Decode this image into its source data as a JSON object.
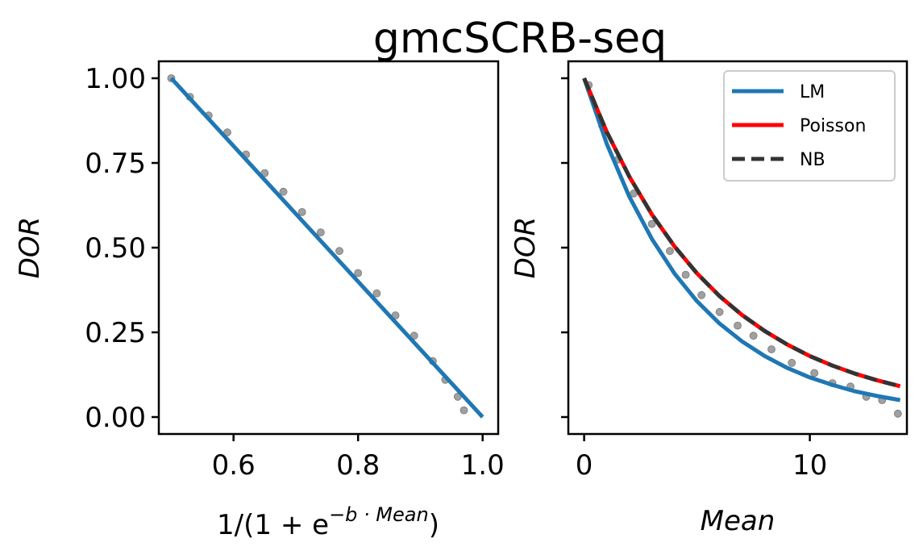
{
  "figure": {
    "title": "gmcSCRB-seq"
  },
  "colors": {
    "lm": "#1f77b4",
    "poisson": "#ff0000",
    "nb": "#333333",
    "points": "#a0a0a0",
    "axes": "#000000",
    "background": "#ffffff"
  },
  "chart_data": [
    {
      "type": "scatter",
      "panel": "left",
      "xlabel": "1/(1 + e",
      "xlabel_sup": "−b · Mean",
      "xlabel_tail": ")",
      "ylabel": "DOR",
      "xlim": [
        0.48,
        1.025
      ],
      "ylim": [
        -0.05,
        1.05
      ],
      "x_ticks": [
        0.6,
        0.8,
        1.0
      ],
      "x_tick_labels": [
        "0.6",
        "0.8",
        "1.0"
      ],
      "y_ticks": [
        0.0,
        0.25,
        0.5,
        0.75,
        1.0
      ],
      "y_tick_labels": [
        "0.00",
        "0.25",
        "0.50",
        "0.75",
        "1.00"
      ],
      "grid": false,
      "series": [
        {
          "kind": "points",
          "color": "#a0a0a0",
          "x": [
            0.5,
            0.53,
            0.56,
            0.59,
            0.62,
            0.65,
            0.68,
            0.71,
            0.74,
            0.77,
            0.8,
            0.83,
            0.86,
            0.89,
            0.92,
            0.94,
            0.96,
            0.97
          ],
          "y": [
            1.0,
            0.945,
            0.89,
            0.84,
            0.775,
            0.72,
            0.665,
            0.605,
            0.545,
            0.49,
            0.425,
            0.365,
            0.3,
            0.24,
            0.165,
            0.11,
            0.06,
            0.02
          ]
        },
        {
          "kind": "line",
          "color": "#1f77b4",
          "x": [
            0.5,
            1.0
          ],
          "y": [
            1.0,
            0.0
          ]
        }
      ]
    },
    {
      "type": "line",
      "panel": "right",
      "xlabel": "Mean",
      "ylabel": "DOR",
      "xlim": [
        -0.7,
        14.3
      ],
      "ylim": [
        -0.05,
        1.05
      ],
      "x_ticks": [
        0,
        10
      ],
      "x_tick_labels": [
        "0",
        "10"
      ],
      "y_ticks": [
        0.0,
        0.25,
        0.5,
        0.75,
        1.0
      ],
      "y_tick_labels": [
        "",
        "",
        "",
        "",
        ""
      ],
      "grid": false,
      "legend_position": "top-right",
      "series": [
        {
          "name": "LM",
          "color": "#1f77b4",
          "dash": "solid",
          "x": [
            0,
            1,
            2,
            3,
            4,
            5,
            6,
            7,
            8,
            9,
            10,
            11,
            12,
            13,
            14
          ],
          "y": [
            1.0,
            0.807,
            0.651,
            0.526,
            0.424,
            0.342,
            0.276,
            0.223,
            0.18,
            0.145,
            0.117,
            0.095,
            0.076,
            0.062,
            0.05
          ]
        },
        {
          "name": "Poisson",
          "color": "#ff0000",
          "dash": "solid",
          "x": [
            0,
            1,
            2,
            3,
            4,
            5,
            6,
            7,
            8,
            9,
            10,
            11,
            12,
            13,
            14
          ],
          "y": [
            1.0,
            0.842,
            0.71,
            0.598,
            0.504,
            0.424,
            0.357,
            0.301,
            0.254,
            0.214,
            0.18,
            0.152,
            0.128,
            0.108,
            0.091
          ]
        },
        {
          "name": "NB",
          "color": "#333333",
          "dash": "dashed",
          "x": [
            0,
            1,
            2,
            3,
            4,
            5,
            6,
            7,
            8,
            9,
            10,
            11,
            12,
            13,
            14
          ],
          "y": [
            1.0,
            0.842,
            0.71,
            0.598,
            0.504,
            0.424,
            0.357,
            0.301,
            0.254,
            0.214,
            0.18,
            0.152,
            0.128,
            0.108,
            0.091
          ]
        },
        {
          "kind": "points",
          "color": "#a0a0a0",
          "x": [
            0.2,
            0.8,
            1.5,
            2.2,
            3.0,
            3.8,
            4.5,
            5.2,
            6.0,
            6.8,
            7.5,
            8.3,
            9.2,
            10.2,
            11.0,
            11.8,
            12.5,
            13.2,
            13.9
          ],
          "y": [
            0.98,
            0.86,
            0.76,
            0.66,
            0.57,
            0.49,
            0.42,
            0.36,
            0.31,
            0.27,
            0.24,
            0.2,
            0.16,
            0.13,
            0.1,
            0.09,
            0.06,
            0.05,
            0.01
          ]
        }
      ]
    }
  ]
}
